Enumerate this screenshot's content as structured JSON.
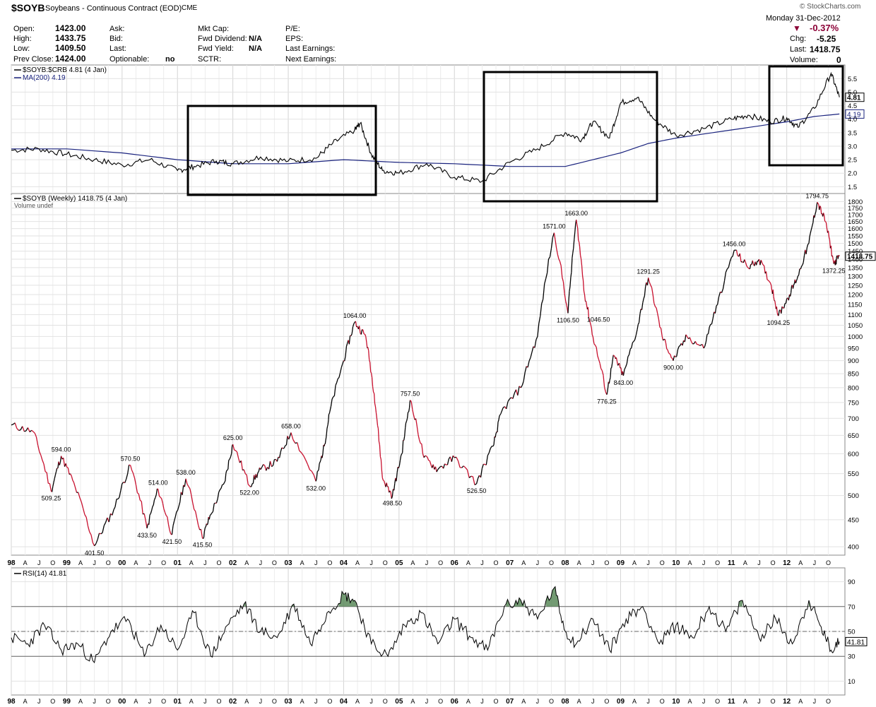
{
  "header": {
    "symbol": "$SOYB",
    "name": "Soybeans - Continuous Contract (EOD)",
    "exchange": "CME",
    "credit": "© StockCharts.com",
    "date": "Monday 31-Dec-2012",
    "pct_change": "-0.37%",
    "chg_label": "Chg:",
    "chg_value": "-5.25",
    "last_label": "Last:",
    "last_value": "1418.75",
    "volume_label": "Volume:",
    "volume_value": "0",
    "fields": {
      "open_label": "Open:",
      "open": "1423.00",
      "high_label": "High:",
      "high": "1433.75",
      "low_label": "Low:",
      "low": "1409.50",
      "prev_label": "Prev Close:",
      "prev": "1424.00",
      "ask_label": "Ask:",
      "bid_label": "Bid:",
      "lastq_label": "Last:",
      "optionable_label": "Optionable:",
      "optionable": "no",
      "mktcap_label": "Mkt Cap:",
      "fwddiv_label": "Fwd Dividend:",
      "fwddiv": "N/A",
      "fwdyield_label": "Fwd Yield:",
      "fwdyield": "N/A",
      "sctr_label": "SCTR:",
      "pe_label": "P/E:",
      "eps_label": "EPS:",
      "lastearn_label": "Last Earnings:",
      "nextearn_label": "Next Earnings:"
    },
    "accent_down": "#8b0036"
  },
  "chart_data": [
    {
      "type": "line",
      "panel": "ratio",
      "legend": [
        "$SOYB:$CRB 4.81 (4 Jan)",
        "MA(200) 4.19"
      ],
      "ylim": [
        1.3,
        5.9
      ],
      "yticks": [
        1.5,
        2.0,
        2.5,
        3.0,
        3.5,
        4.0,
        4.5,
        5.0,
        5.5
      ],
      "ytick_labels": [
        "1.5",
        "2.0",
        "2.5",
        "3.0",
        "3.5",
        "4.0",
        "4.5",
        "5.0",
        "5.5"
      ],
      "last_label": "4.81",
      "ma_label": "4.19",
      "series": [
        {
          "name": "$SOYB:$CRB",
          "x": [
            1998.0,
            1998.5,
            1999.0,
            1999.5,
            2000.0,
            2000.5,
            2001.0,
            2001.3,
            2001.7,
            2002.0,
            2002.5,
            2003.0,
            2003.5,
            2003.8,
            2004.2,
            2004.3,
            2004.5,
            2004.7,
            2005.0,
            2005.5,
            2006.0,
            2006.5,
            2007.0,
            2007.5,
            2008.0,
            2008.3,
            2008.5,
            2008.8,
            2009.0,
            2009.3,
            2009.6,
            2010.0,
            2010.5,
            2011.0,
            2011.3,
            2011.7,
            2012.0,
            2012.2,
            2012.5,
            2012.8,
            2012.95
          ],
          "values": [
            2.85,
            2.9,
            2.7,
            2.5,
            2.3,
            2.5,
            2.1,
            2.25,
            2.45,
            2.35,
            2.6,
            2.45,
            2.55,
            3.1,
            3.6,
            3.85,
            2.7,
            2.1,
            2.0,
            2.35,
            1.85,
            1.7,
            2.4,
            2.9,
            3.5,
            3.25,
            3.9,
            3.3,
            4.6,
            4.8,
            4.0,
            3.4,
            3.65,
            4.0,
            4.15,
            3.9,
            4.05,
            3.7,
            4.4,
            5.7,
            4.81
          ]
        },
        {
          "name": "MA(200)",
          "x": [
            1998.0,
            1999.0,
            2000.0,
            2001.0,
            2002.0,
            2003.0,
            2004.0,
            2004.5,
            2005.0,
            2006.0,
            2007.0,
            2008.0,
            2008.5,
            2009.0,
            2009.5,
            2010.0,
            2011.0,
            2012.0,
            2012.5,
            2012.95
          ],
          "values": [
            2.9,
            2.9,
            2.75,
            2.5,
            2.35,
            2.35,
            2.5,
            2.45,
            2.4,
            2.35,
            2.25,
            2.25,
            2.5,
            2.75,
            3.1,
            3.3,
            3.6,
            3.9,
            4.1,
            4.19
          ]
        }
      ]
    },
    {
      "type": "line",
      "panel": "price",
      "legend": [
        "$SOYB (Weekly) 1418.75 (4 Jan)",
        "Volume undef"
      ],
      "scale": "log",
      "ylim": [
        388,
        1830
      ],
      "yticks": [
        400,
        450,
        500,
        550,
        600,
        650,
        700,
        750,
        800,
        850,
        900,
        950,
        1000,
        1050,
        1100,
        1150,
        1200,
        1250,
        1300,
        1350,
        1400,
        1450,
        1500,
        1550,
        1600,
        1650,
        1700,
        1750,
        1800
      ],
      "ytick_labels": [
        "400",
        "450",
        "500",
        "550",
        "600",
        "650",
        "700",
        "750",
        "800",
        "850",
        "900",
        "950",
        "1000",
        "1050",
        "1100",
        "1150",
        "1200",
        "1250",
        "1300",
        "1350",
        "1400",
        "1450",
        "1500",
        "1550",
        "1600",
        "1650",
        "1700",
        "1750",
        "1800"
      ],
      "last_label": "1418.75",
      "series": [
        {
          "name": "$SOYB",
          "x": [
            1998.0,
            1998.4,
            1998.72,
            1998.9,
            1999.15,
            1999.5,
            1999.85,
            2000.15,
            2000.45,
            2000.65,
            2000.9,
            2001.15,
            2001.45,
            2001.6,
            2001.85,
            2002.0,
            2002.3,
            2002.5,
            2002.8,
            2003.05,
            2003.5,
            2003.65,
            2003.75,
            2004.0,
            2004.2,
            2004.4,
            2004.55,
            2004.7,
            2004.88,
            2005.05,
            2005.2,
            2005.45,
            2005.7,
            2006.0,
            2006.4,
            2006.7,
            2006.85,
            2007.2,
            2007.5,
            2007.8,
            2008.05,
            2008.2,
            2008.35,
            2008.5,
            2008.75,
            2008.88,
            2009.05,
            2009.3,
            2009.5,
            2009.75,
            2009.95,
            2010.2,
            2010.5,
            2010.75,
            2011.05,
            2011.3,
            2011.5,
            2011.72,
            2011.85,
            2012.05,
            2012.2,
            2012.4,
            2012.55,
            2012.7,
            2012.85,
            2012.95
          ],
          "values": [
            680,
            660,
            509.25,
            594,
            520,
            401.5,
            470,
            570.5,
            433.5,
            514,
            421.5,
            538,
            415.5,
            460,
            530,
            625,
            522,
            560,
            580,
            658,
            532,
            620,
            720,
            900,
            1064,
            1000,
            780,
            540,
            498.5,
            600,
            757.5,
            590,
            560,
            590,
            526.5,
            620,
            720,
            800,
            1000,
            1571,
            1106.5,
            1663,
            1200,
            1000,
            776.25,
            920,
            843,
            1030,
            1291.25,
            1000,
            900,
            1000,
            950,
            1150,
            1456,
            1350,
            1400,
            1250,
            1094.25,
            1200,
            1300,
            1500,
            1794.75,
            1650,
            1372.25,
            1418.75
          ]
        }
      ],
      "annotations": [
        {
          "x": 1998.72,
          "y": 509.25,
          "text": "509.25",
          "pos": "below"
        },
        {
          "x": 1998.9,
          "y": 594,
          "text": "594.00",
          "pos": "above"
        },
        {
          "x": 1999.5,
          "y": 401.5,
          "text": "401.50",
          "pos": "below"
        },
        {
          "x": 2000.15,
          "y": 570.5,
          "text": "570.50",
          "pos": "above"
        },
        {
          "x": 2000.45,
          "y": 433.5,
          "text": "433.50",
          "pos": "below"
        },
        {
          "x": 2000.65,
          "y": 514,
          "text": "514.00",
          "pos": "above"
        },
        {
          "x": 2000.9,
          "y": 421.5,
          "text": "421.50",
          "pos": "below"
        },
        {
          "x": 2001.15,
          "y": 538,
          "text": "538.00",
          "pos": "above"
        },
        {
          "x": 2001.45,
          "y": 415.5,
          "text": "415.50",
          "pos": "below"
        },
        {
          "x": 2002.0,
          "y": 625,
          "text": "625.00",
          "pos": "above"
        },
        {
          "x": 2002.3,
          "y": 522,
          "text": "522.00",
          "pos": "below"
        },
        {
          "x": 2003.05,
          "y": 658,
          "text": "658.00",
          "pos": "above"
        },
        {
          "x": 2003.5,
          "y": 532,
          "text": "532.00",
          "pos": "below"
        },
        {
          "x": 2004.2,
          "y": 1064,
          "text": "1064.00",
          "pos": "above"
        },
        {
          "x": 2004.88,
          "y": 498.5,
          "text": "498.50",
          "pos": "below"
        },
        {
          "x": 2005.2,
          "y": 757.5,
          "text": "757.50",
          "pos": "above"
        },
        {
          "x": 2006.4,
          "y": 526.5,
          "text": "526.50",
          "pos": "below"
        },
        {
          "x": 2007.8,
          "y": 1571,
          "text": "1571.00",
          "pos": "above"
        },
        {
          "x": 2008.05,
          "y": 1106.5,
          "text": "1106.50",
          "pos": "below"
        },
        {
          "x": 2008.2,
          "y": 1663,
          "text": "1663.00",
          "pos": "above"
        },
        {
          "x": 2008.75,
          "y": 776.25,
          "text": "776.25",
          "pos": "below"
        },
        {
          "x": 2008.6,
          "y": 1046.5,
          "text": "1046.50",
          "pos": "above"
        },
        {
          "x": 2009.05,
          "y": 843,
          "text": "843.00",
          "pos": "below"
        },
        {
          "x": 2009.5,
          "y": 1291.25,
          "text": "1291.25",
          "pos": "above"
        },
        {
          "x": 2009.95,
          "y": 900,
          "text": "900.00",
          "pos": "below"
        },
        {
          "x": 2011.05,
          "y": 1456,
          "text": "1456.00",
          "pos": "above"
        },
        {
          "x": 2011.85,
          "y": 1094.25,
          "text": "1094.25",
          "pos": "below"
        },
        {
          "x": 2012.55,
          "y": 1794.75,
          "text": "1794.75",
          "pos": "above"
        },
        {
          "x": 2012.85,
          "y": 1372.25,
          "text": "1372.25",
          "pos": "below"
        }
      ]
    },
    {
      "type": "line",
      "panel": "rsi",
      "legend": [
        "RSI(14) 41.81"
      ],
      "ylim": [
        0,
        100
      ],
      "yticks": [
        10,
        30,
        50,
        70,
        90
      ],
      "ytick_labels": [
        "10",
        "30",
        "50",
        "70",
        "90"
      ],
      "levels": [
        30,
        50,
        70
      ],
      "last_label": "41.81",
      "series": [
        {
          "name": "RSI(14)",
          "x": [
            1998.0,
            1998.3,
            1998.6,
            1998.9,
            1999.2,
            1999.5,
            1999.8,
            2000.1,
            2000.4,
            2000.7,
            2001.0,
            2001.3,
            2001.6,
            2001.9,
            2002.2,
            2002.5,
            2002.8,
            2003.1,
            2003.4,
            2003.7,
            2004.0,
            2004.2,
            2004.5,
            2004.8,
            2005.1,
            2005.4,
            2005.7,
            2006.0,
            2006.3,
            2006.6,
            2006.9,
            2007.2,
            2007.5,
            2007.8,
            2008.0,
            2008.2,
            2008.5,
            2008.8,
            2009.1,
            2009.4,
            2009.7,
            2010.0,
            2010.3,
            2010.6,
            2010.9,
            2011.2,
            2011.5,
            2011.8,
            2012.1,
            2012.4,
            2012.6,
            2012.8,
            2012.95
          ],
          "values": [
            45,
            40,
            55,
            35,
            40,
            25,
            50,
            60,
            30,
            55,
            35,
            65,
            30,
            55,
            72,
            50,
            45,
            72,
            40,
            65,
            80,
            75,
            40,
            30,
            55,
            65,
            40,
            60,
            45,
            35,
            70,
            75,
            60,
            85,
            50,
            40,
            60,
            35,
            60,
            70,
            40,
            55,
            45,
            70,
            50,
            75,
            45,
            60,
            40,
            75,
            55,
            35,
            41.81
          ]
        }
      ]
    }
  ],
  "xaxis": {
    "year_labels": [
      "98",
      "99",
      "00",
      "01",
      "02",
      "03",
      "04",
      "05",
      "06",
      "07",
      "08",
      "09",
      "10",
      "11",
      "12"
    ],
    "month_labels": [
      "A",
      "J",
      "O"
    ]
  }
}
